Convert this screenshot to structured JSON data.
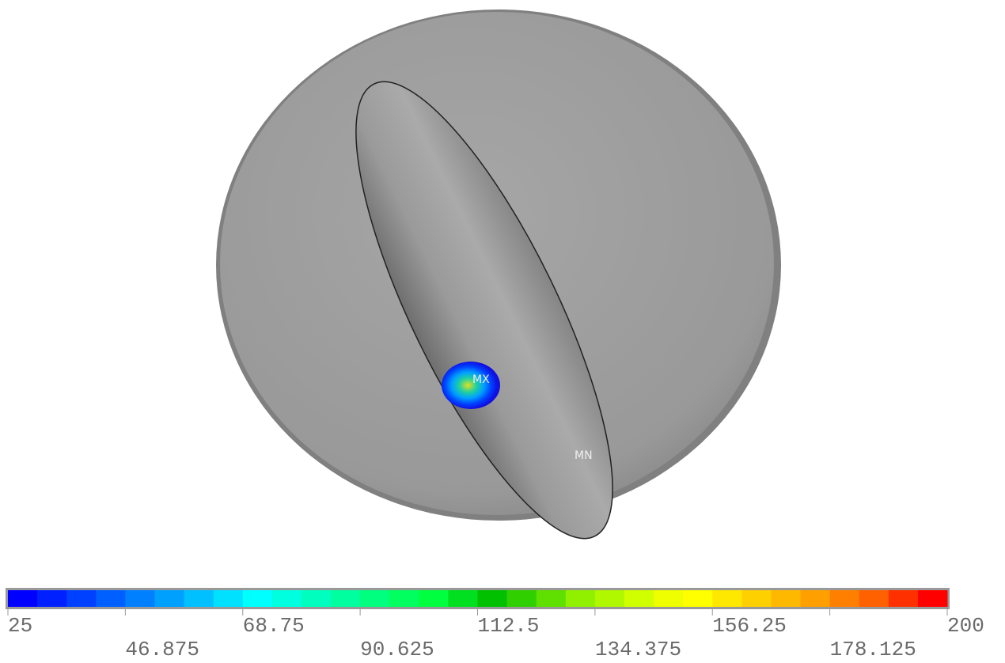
{
  "labels": {
    "max": "MX",
    "min": "MN"
  },
  "legend": {
    "ticks": [
      25,
      46.875,
      68.75,
      90.625,
      112.5,
      134.375,
      156.25,
      178.125,
      200
    ],
    "colors": [
      "#0000ff",
      "#0020ff",
      "#0040ff",
      "#0060ff",
      "#0080ff",
      "#00a0ff",
      "#00c0ff",
      "#00e0ff",
      "#00ffff",
      "#00ffdf",
      "#00ffbf",
      "#00ff9f",
      "#00ff7f",
      "#00ff5f",
      "#00ff3f",
      "#00e020",
      "#00c000",
      "#30d000",
      "#60e000",
      "#90f000",
      "#b0f800",
      "#d0ff00",
      "#f0ff00",
      "#ffff00",
      "#ffe800",
      "#ffd000",
      "#ffb800",
      "#ffa000",
      "#ff8000",
      "#ff6000",
      "#ff3000",
      "#ff0000"
    ]
  }
}
